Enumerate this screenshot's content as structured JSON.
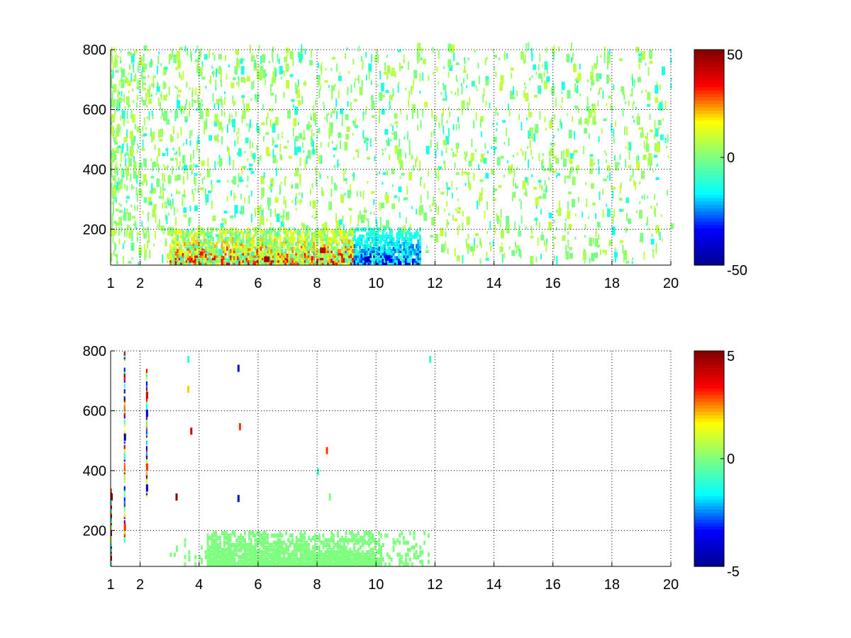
{
  "chart_data": [
    {
      "type": "heatmap",
      "title": "",
      "xlabel": "",
      "ylabel": "",
      "xlim": [
        1,
        20
      ],
      "ylim": [
        80,
        800
      ],
      "xticks": [
        1,
        2,
        4,
        6,
        8,
        10,
        12,
        14,
        16,
        18,
        20
      ],
      "xtick_labels": [
        "1",
        "2",
        "4",
        "6",
        "8",
        "10",
        "12",
        "14",
        "16",
        "18",
        "20"
      ],
      "yticks": [
        200,
        400,
        600,
        800
      ],
      "ytick_labels": [
        "200",
        "400",
        "600",
        "800"
      ],
      "grid": true,
      "colormap": "jet",
      "colorbar": {
        "min": -50,
        "max": 50,
        "ticks": [
          50,
          0,
          -50
        ],
        "tick_labels": [
          "50",
          "0",
          "-50"
        ]
      },
      "colormap_colors": [
        "#00008f",
        "#0000ff",
        "#00ffff",
        "#7fff7f",
        "#ffff00",
        "#ff0000",
        "#800000"
      ],
      "dense_region": {
        "x_range": [
          3,
          11.5
        ],
        "y_range": [
          80,
          200
        ],
        "value_range": [
          -50,
          50
        ]
      },
      "scatter_region": {
        "x_range": [
          1,
          20
        ],
        "y_range": [
          80,
          800
        ],
        "value_range": [
          -15,
          10
        ]
      },
      "hotspots": [
        {
          "x": 8.1,
          "y": 120,
          "value": 40
        },
        {
          "x": 6.2,
          "y": 90,
          "value": 45
        },
        {
          "x": 9.6,
          "y": 90,
          "value": -45
        },
        {
          "x": 10.3,
          "y": 95,
          "value": -35
        }
      ]
    },
    {
      "type": "heatmap",
      "title": "",
      "xlabel": "",
      "ylabel": "",
      "xlim": [
        1,
        20
      ],
      "ylim": [
        80,
        800
      ],
      "xticks": [
        1,
        2,
        4,
        6,
        8,
        10,
        12,
        14,
        16,
        18,
        20
      ],
      "xtick_labels": [
        "1",
        "2",
        "4",
        "6",
        "8",
        "10",
        "12",
        "14",
        "16",
        "18",
        "20"
      ],
      "yticks": [
        200,
        400,
        600,
        800
      ],
      "ytick_labels": [
        "200",
        "400",
        "600",
        "800"
      ],
      "grid": true,
      "colormap": "jet",
      "colorbar": {
        "min": -5,
        "max": 5,
        "ticks": [
          5,
          0,
          -5
        ],
        "tick_labels": [
          "5",
          "0",
          "-5"
        ]
      },
      "colormap_colors": [
        "#00008f",
        "#0000ff",
        "#00ffff",
        "#7fff7f",
        "#ffff00",
        "#ff0000",
        "#800000"
      ],
      "dense_region": {
        "x_range": [
          3,
          11.8
        ],
        "y_range": [
          80,
          190
        ],
        "value_range": [
          0,
          0
        ]
      },
      "sparse_points": [
        {
          "x": 1.0,
          "y": 300,
          "value": 5
        },
        {
          "x": 1.45,
          "y": 500,
          "value": -5
        },
        {
          "x": 1.45,
          "y": 200,
          "value": 3
        },
        {
          "x": 2.2,
          "y": 640,
          "value": 4
        },
        {
          "x": 2.2,
          "y": 580,
          "value": -4
        },
        {
          "x": 2.2,
          "y": 400,
          "value": 3
        },
        {
          "x": 2.2,
          "y": 330,
          "value": -4
        },
        {
          "x": 3.6,
          "y": 760,
          "value": -1
        },
        {
          "x": 3.6,
          "y": 660,
          "value": 2
        },
        {
          "x": 3.7,
          "y": 520,
          "value": 4
        },
        {
          "x": 3.2,
          "y": 300,
          "value": 5
        },
        {
          "x": 5.3,
          "y": 730,
          "value": -4
        },
        {
          "x": 5.35,
          "y": 535,
          "value": 3
        },
        {
          "x": 5.3,
          "y": 295,
          "value": -4
        },
        {
          "x": 8.3,
          "y": 455,
          "value": 3
        },
        {
          "x": 8.0,
          "y": 385,
          "value": -1
        },
        {
          "x": 8.4,
          "y": 300,
          "value": 0
        },
        {
          "x": 11.8,
          "y": 760,
          "value": -1
        }
      ]
    }
  ]
}
